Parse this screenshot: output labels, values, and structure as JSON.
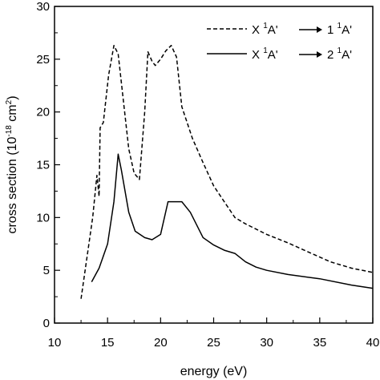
{
  "chart_data": {
    "type": "line",
    "xlabel": "energy (eV)",
    "ylabel": "cross section (10",
    "ylabel_exp": "-18",
    "ylabel_unit": " cm",
    "ylabel_unit_exp": "2",
    "ylabel_close": ")",
    "xlim": [
      10,
      40
    ],
    "ylim": [
      0,
      30
    ],
    "xticks": [
      10,
      15,
      20,
      25,
      30,
      35,
      40
    ],
    "yticks": [
      0,
      5,
      10,
      15,
      20,
      25,
      30
    ],
    "grid": false,
    "legend_position": "top-right",
    "series": [
      {
        "legend": [
          "X ",
          "1",
          "A'",
          "1 ",
          "1",
          "A'"
        ],
        "style": "dashed",
        "color": "#000000",
        "x": [
          12.5,
          13.6,
          14.0,
          14.2,
          14.3,
          14.6,
          15.1,
          15.6,
          16.0,
          16.5,
          17.0,
          17.5,
          18.0,
          18.5,
          18.8,
          19.2,
          19.5,
          20.0,
          20.5,
          21.0,
          21.5,
          22.0,
          23.0,
          24.0,
          25.0,
          26.0,
          27.0,
          28.0,
          30.0,
          32.0,
          34.0,
          36.0,
          38.0,
          40.0
        ],
        "y": [
          2.3,
          10.0,
          14.0,
          12.0,
          18.5,
          19.0,
          23.5,
          26.3,
          25.5,
          21.0,
          16.5,
          14.2,
          13.6,
          20.0,
          25.7,
          24.8,
          24.4,
          25.0,
          25.8,
          26.3,
          25.2,
          20.5,
          17.5,
          15.2,
          13.0,
          11.5,
          10.0,
          9.4,
          8.4,
          7.6,
          6.7,
          5.8,
          5.2,
          4.8
        ]
      },
      {
        "legend": [
          "X ",
          "1",
          "A'",
          "2 ",
          "1",
          "A'"
        ],
        "style": "solid",
        "color": "#000000",
        "x": [
          13.5,
          14.2,
          15.0,
          15.6,
          16.0,
          16.3,
          17.0,
          17.6,
          18.5,
          19.2,
          20.0,
          20.7,
          21.5,
          22.0,
          22.8,
          24.0,
          25.0,
          26.0,
          27.0,
          28.0,
          29.0,
          30.0,
          32.0,
          35.0,
          38.0,
          40.0
        ],
        "y": [
          3.9,
          5.2,
          7.5,
          11.5,
          16.0,
          14.5,
          10.5,
          8.7,
          8.1,
          7.9,
          8.4,
          11.5,
          11.5,
          11.5,
          10.5,
          8.1,
          7.4,
          6.9,
          6.6,
          5.8,
          5.3,
          5.0,
          4.6,
          4.2,
          3.6,
          3.3
        ]
      }
    ]
  }
}
